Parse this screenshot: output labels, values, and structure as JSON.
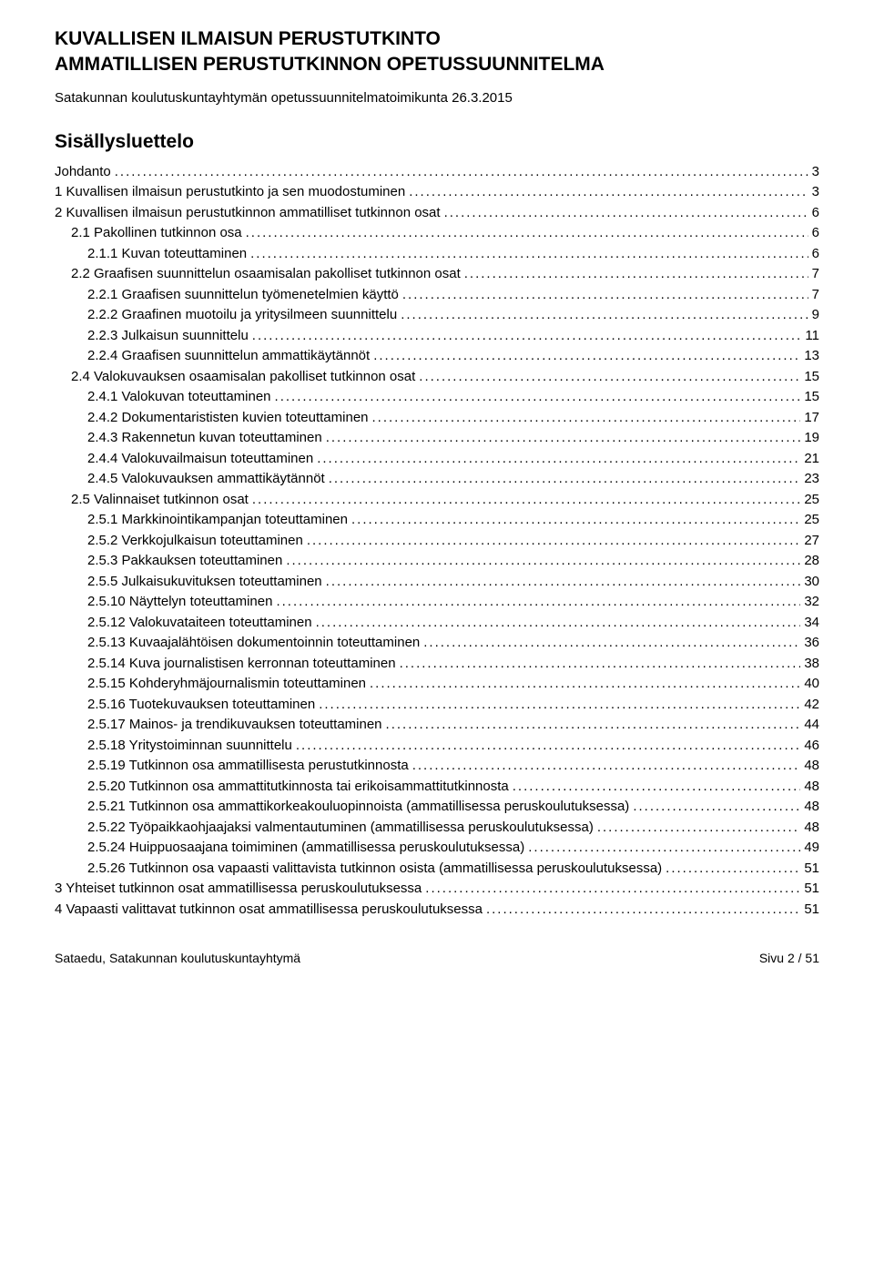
{
  "heading": {
    "line1": "KUVALLISEN ILMAISUN PERUSTUTKINTO",
    "line2": "AMMATILLISEN PERUSTUTKINNON OPETUSSUUNNITELMA",
    "subtitle": "Satakunnan koulutuskuntayhtymän opetussuunnitelmatoimikunta 26.3.2015"
  },
  "tocHeading": "Sisällysluettelo",
  "toc": [
    {
      "label": "Johdanto",
      "page": "3",
      "indent": 0
    },
    {
      "label": "1 Kuvallisen ilmaisun perustutkinto ja sen muodostuminen",
      "page": "3",
      "indent": 0
    },
    {
      "label": "2 Kuvallisen ilmaisun perustutkinnon ammatilliset tutkinnon osat",
      "page": "6",
      "indent": 0
    },
    {
      "label": "2.1 Pakollinen tutkinnon osa",
      "page": "6",
      "indent": 1
    },
    {
      "label": "2.1.1 Kuvan toteuttaminen",
      "page": "6",
      "indent": 2
    },
    {
      "label": "2.2 Graafisen suunnittelun osaamisalan pakolliset tutkinnon osat",
      "page": "7",
      "indent": 1
    },
    {
      "label": "2.2.1 Graafisen suunnittelun työmenetelmien käyttö",
      "page": "7",
      "indent": 2
    },
    {
      "label": "2.2.2 Graafinen muotoilu ja yritysilmeen suunnittelu",
      "page": "9",
      "indent": 2
    },
    {
      "label": "2.2.3 Julkaisun suunnittelu",
      "page": "11",
      "indent": 2
    },
    {
      "label": "2.2.4 Graafisen suunnittelun ammattikäytännöt",
      "page": "13",
      "indent": 2
    },
    {
      "label": "2.4 Valokuvauksen osaamisalan pakolliset tutkinnon osat",
      "page": "15",
      "indent": 1
    },
    {
      "label": "2.4.1 Valokuvan toteuttaminen",
      "page": "15",
      "indent": 2
    },
    {
      "label": "2.4.2 Dokumentarististen kuvien toteuttaminen",
      "page": "17",
      "indent": 2
    },
    {
      "label": "2.4.3 Rakennetun kuvan toteuttaminen",
      "page": "19",
      "indent": 2
    },
    {
      "label": "2.4.4 Valokuvailmaisun toteuttaminen",
      "page": "21",
      "indent": 2
    },
    {
      "label": "2.4.5 Valokuvauksen ammattikäytännöt",
      "page": "23",
      "indent": 2
    },
    {
      "label": "2.5 Valinnaiset tutkinnon osat",
      "page": "25",
      "indent": 1
    },
    {
      "label": "2.5.1 Markkinointikampanjan toteuttaminen",
      "page": "25",
      "indent": 2
    },
    {
      "label": "2.5.2 Verkkojulkaisun toteuttaminen",
      "page": "27",
      "indent": 2
    },
    {
      "label": "2.5.3 Pakkauksen toteuttaminen",
      "page": "28",
      "indent": 2
    },
    {
      "label": "2.5.5 Julkaisukuvituksen toteuttaminen",
      "page": "30",
      "indent": 2
    },
    {
      "label": "2.5.10 Näyttelyn toteuttaminen",
      "page": "32",
      "indent": 2
    },
    {
      "label": "2.5.12 Valokuvataiteen toteuttaminen",
      "page": "34",
      "indent": 2
    },
    {
      "label": "2.5.13 Kuvaajalähtöisen dokumentoinnin toteuttaminen",
      "page": "36",
      "indent": 2
    },
    {
      "label": "2.5.14 Kuva journalistisen kerronnan toteuttaminen",
      "page": "38",
      "indent": 2
    },
    {
      "label": "2.5.15 Kohderyhmäjournalismin toteuttaminen",
      "page": "40",
      "indent": 2
    },
    {
      "label": "2.5.16 Tuotekuvauksen toteuttaminen",
      "page": "42",
      "indent": 2
    },
    {
      "label": "2.5.17 Mainos- ja trendikuvauksen toteuttaminen",
      "page": "44",
      "indent": 2
    },
    {
      "label": "2.5.18 Yritystoiminnan suunnittelu",
      "page": "46",
      "indent": 2
    },
    {
      "label": "2.5.19 Tutkinnon osa ammatillisesta perustutkinnosta",
      "page": "48",
      "indent": 2
    },
    {
      "label": "2.5.20 Tutkinnon osa ammattitutkinnosta tai erikoisammattitutkinnosta",
      "page": "48",
      "indent": 2
    },
    {
      "label": "2.5.21 Tutkinnon osa ammattikorkeakouluopinnoista (ammatillisessa peruskoulutuksessa)",
      "page": "48",
      "indent": 2
    },
    {
      "label": "2.5.22 Työpaikkaohjaajaksi valmentautuminen (ammatillisessa peruskoulutuksessa)",
      "page": "48",
      "indent": 2
    },
    {
      "label": "2.5.24 Huippuosaajana toimiminen (ammatillisessa peruskoulutuksessa)",
      "page": "49",
      "indent": 2
    },
    {
      "label": "2.5.26 Tutkinnon osa vapaasti valittavista tutkinnon osista (ammatillisessa peruskoulutuksessa)",
      "page": "51",
      "indent": 2
    },
    {
      "label": "3 Yhteiset tutkinnon osat ammatillisessa peruskoulutuksessa",
      "page": "51",
      "indent": 0
    },
    {
      "label": "4 Vapaasti valittavat tutkinnon osat ammatillisessa peruskoulutuksessa",
      "page": "51",
      "indent": 0
    }
  ],
  "footer": {
    "left": "Sataedu, Satakunnan koulutuskuntayhtymä",
    "right": "Sivu 2 / 51"
  }
}
